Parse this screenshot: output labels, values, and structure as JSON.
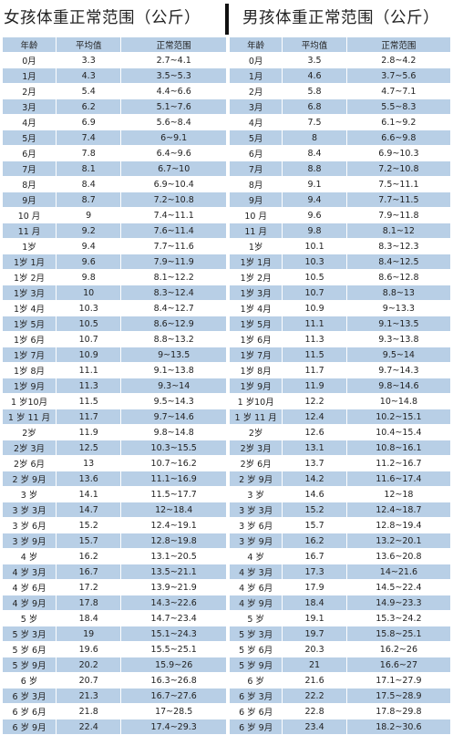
{
  "girls": {
    "title": "女孩体重正常范围（公斤）",
    "headers": [
      "年龄",
      "平均值",
      "正常范围"
    ],
    "rows": [
      [
        "0月",
        "3.3",
        "2.7~4.1"
      ],
      [
        "1月",
        "4.3",
        "3.5~5.3"
      ],
      [
        "2月",
        "5.4",
        "4.4~6.6"
      ],
      [
        "3月",
        "6.2",
        "5.1~7.6"
      ],
      [
        "4月",
        "6.9",
        "5.6~8.4"
      ],
      [
        "5月",
        "7.4",
        "6~9.1"
      ],
      [
        "6月",
        "7.8",
        "6.4~9.6"
      ],
      [
        "7月",
        "8.1",
        "6.7~10"
      ],
      [
        "8月",
        "8.4",
        "6.9~10.4"
      ],
      [
        "9月",
        "8.7",
        "7.2~10.8"
      ],
      [
        "10 月",
        "9",
        "7.4~11.1"
      ],
      [
        "11 月",
        "9.2",
        "7.6~11.4"
      ],
      [
        "1岁",
        "9.4",
        "7.7~11.6"
      ],
      [
        "1岁 1月",
        "9.6",
        "7.9~11.9"
      ],
      [
        "1岁 2月",
        "9.8",
        "8.1~12.2"
      ],
      [
        "1岁 3月",
        "10",
        "8.3~12.4"
      ],
      [
        "1岁 4月",
        "10.3",
        "8.4~12.7"
      ],
      [
        "1岁 5月",
        "10.5",
        "8.6~12.9"
      ],
      [
        "1岁 6月",
        "10.7",
        "8.8~13.2"
      ],
      [
        "1岁 7月",
        "10.9",
        "9~13.5"
      ],
      [
        "1岁 8月",
        "11.1",
        "9.1~13.8"
      ],
      [
        "1岁 9月",
        "11.3",
        "9.3~14"
      ],
      [
        "1 岁10月",
        "11.5",
        "9.5~14.3"
      ],
      [
        "1 岁 11 月",
        "11.7",
        "9.7~14.6"
      ],
      [
        "2岁",
        "11.9",
        "9.8~14.8"
      ],
      [
        "2岁 3月",
        "12.5",
        "10.3~15.5"
      ],
      [
        "2岁 6月",
        "13",
        "10.7~16.2"
      ],
      [
        "2 岁 9月",
        "13.6",
        "11.1~16.9"
      ],
      [
        "3 岁",
        "14.1",
        "11.5~17.7"
      ],
      [
        "3 岁 3月",
        "14.7",
        "12~18.4"
      ],
      [
        "3 岁 6月",
        "15.2",
        "12.4~19.1"
      ],
      [
        "3 岁 9月",
        "15.7",
        "12.8~19.8"
      ],
      [
        "4 岁",
        "16.2",
        "13.1~20.5"
      ],
      [
        "4 岁 3月",
        "16.7",
        "13.5~21.1"
      ],
      [
        "4 岁 6月",
        "17.2",
        "13.9~21.9"
      ],
      [
        "4 岁 9月",
        "17.8",
        "14.3~22.6"
      ],
      [
        "5 岁",
        "18.4",
        "14.7~23.4"
      ],
      [
        "5 岁 3月",
        "19",
        "15.1~24.3"
      ],
      [
        "5 岁 6月",
        "19.6",
        "15.5~25.1"
      ],
      [
        "5 岁 9月",
        "20.2",
        "15.9~26"
      ],
      [
        "6 岁",
        "20.7",
        "16.3~26.8"
      ],
      [
        "6 岁 3月",
        "21.3",
        "16.7~27.6"
      ],
      [
        "6 岁 6月",
        "21.8",
        "17~28.5"
      ],
      [
        "6 岁 9月",
        "22.4",
        "17.4~29.3"
      ]
    ]
  },
  "boys": {
    "title": "男孩体重正常范围（公斤）",
    "headers": [
      "年龄",
      "平均值",
      "正常范围"
    ],
    "rows": [
      [
        "0月",
        "3.5",
        "2.8~4.2"
      ],
      [
        "1月",
        "4.6",
        "3.7~5.6"
      ],
      [
        "2月",
        "5.8",
        "4.7~7.1"
      ],
      [
        "3月",
        "6.8",
        "5.5~8.3"
      ],
      [
        "4月",
        "7.5",
        "6.1~9.2"
      ],
      [
        "5月",
        "8",
        "6.6~9.8"
      ],
      [
        "6月",
        "8.4",
        "6.9~10.3"
      ],
      [
        "7月",
        "8.8",
        "7.2~10.8"
      ],
      [
        "8月",
        "9.1",
        "7.5~11.1"
      ],
      [
        "9月",
        "9.4",
        "7.7~11.5"
      ],
      [
        "10 月",
        "9.6",
        "7.9~11.8"
      ],
      [
        "11 月",
        "9.8",
        "8.1~12"
      ],
      [
        "1岁",
        "10.1",
        "8.3~12.3"
      ],
      [
        "1岁 1月",
        "10.3",
        "8.4~12.5"
      ],
      [
        "1岁 2月",
        "10.5",
        "8.6~12.8"
      ],
      [
        "1岁 3月",
        "10.7",
        "8.8~13"
      ],
      [
        "1岁 4月",
        "10.9",
        "9~13.3"
      ],
      [
        "1岁 5月",
        "11.1",
        "9.1~13.5"
      ],
      [
        "1岁 6月",
        "11.3",
        "9.3~13.8"
      ],
      [
        "1岁 7月",
        "11.5",
        "9.5~14"
      ],
      [
        "1岁 8月",
        "11.7",
        "9.7~14.3"
      ],
      [
        "1岁 9月",
        "11.9",
        "9.8~14.6"
      ],
      [
        "1 岁10月",
        "12.2",
        "10~14.8"
      ],
      [
        "1 岁 11 月",
        "12.4",
        "10.2~15.1"
      ],
      [
        "2岁",
        "12.6",
        "10.4~15.4"
      ],
      [
        "2岁 3月",
        "13.1",
        "10.8~16.1"
      ],
      [
        "2岁 6月",
        "13.7",
        "11.2~16.7"
      ],
      [
        "2 岁 9月",
        "14.2",
        "11.6~17.4"
      ],
      [
        "3 岁",
        "14.6",
        "12~18"
      ],
      [
        "3 岁 3月",
        "15.2",
        "12.4~18.7"
      ],
      [
        "3 岁 6月",
        "15.7",
        "12.8~19.4"
      ],
      [
        "3 岁 9月",
        "16.2",
        "13.2~20.1"
      ],
      [
        "4 岁",
        "16.7",
        "13.6~20.8"
      ],
      [
        "4 岁 3月",
        "17.3",
        "14~21.6"
      ],
      [
        "4 岁 6月",
        "17.9",
        "14.5~22.4"
      ],
      [
        "4 岁 9月",
        "18.4",
        "14.9~23.3"
      ],
      [
        "5 岁",
        "19.1",
        "15.3~24.2"
      ],
      [
        "5 岁 3月",
        "19.7",
        "15.8~25.1"
      ],
      [
        "5 岁 6月",
        "20.3",
        "16.2~26"
      ],
      [
        "5 岁 9月",
        "21",
        "16.6~27"
      ],
      [
        "6 岁",
        "21.6",
        "17.1~27.9"
      ],
      [
        "6 岁 3月",
        "22.2",
        "17.5~28.9"
      ],
      [
        "6 岁 6月",
        "22.8",
        "17.8~29.8"
      ],
      [
        "6 岁 9月",
        "23.4",
        "18.2~30.6"
      ]
    ]
  }
}
